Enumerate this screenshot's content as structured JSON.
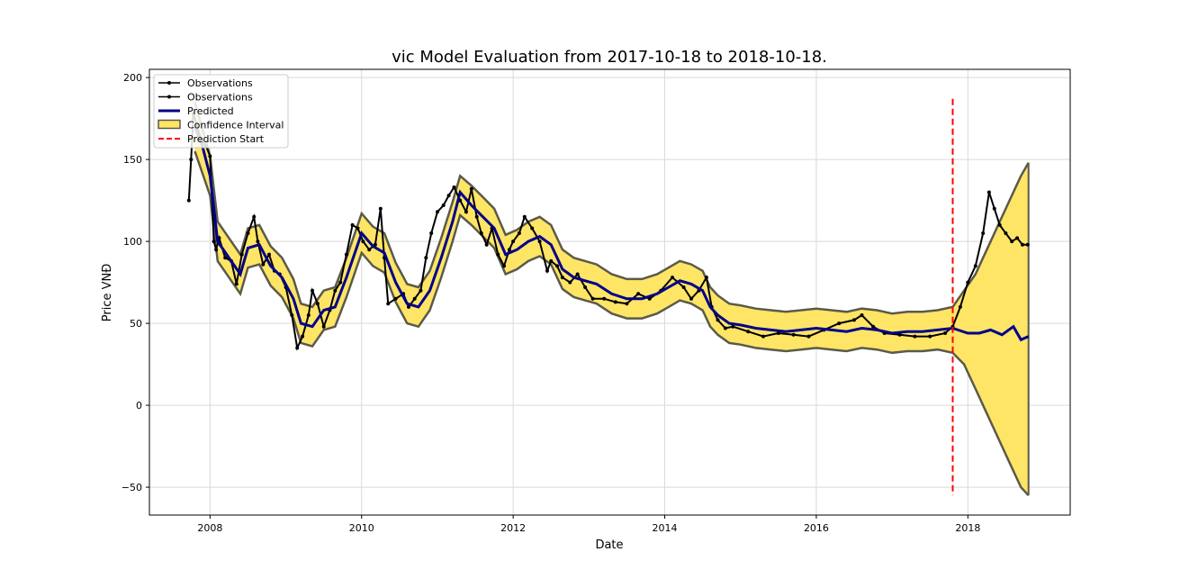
{
  "chart_data": {
    "type": "line",
    "title": "vic Model Evaluation from 2017-10-18 to 2018-10-18.",
    "xlabel": "Date",
    "ylabel": "Price VNĐ",
    "xlim": [
      2007.2,
      2019.35
    ],
    "ylim": [
      -67,
      205
    ],
    "x_ticks": [
      2008,
      2010,
      2012,
      2014,
      2016,
      2018
    ],
    "x_tick_labels": [
      "2008",
      "2010",
      "2012",
      "2014",
      "2016",
      "2018"
    ],
    "y_ticks": [
      -50,
      0,
      50,
      100,
      150,
      200
    ],
    "y_tick_labels": [
      "−50",
      "0",
      "50",
      "100",
      "150",
      "200"
    ],
    "grid": true,
    "legend_position": "top-left",
    "legend": [
      {
        "label": "Observations",
        "style": "obs"
      },
      {
        "label": "Observations",
        "style": "obs"
      },
      {
        "label": "Predicted",
        "style": "pred"
      },
      {
        "label": "Confidence Interval",
        "style": "ci"
      },
      {
        "label": "Prediction Start",
        "style": "start"
      }
    ],
    "prediction_start": {
      "x": 2017.8,
      "y_range": [
        -55,
        187
      ]
    },
    "colors": {
      "observations": "#000000",
      "predicted": "#00008b",
      "ci_fill": "#ffe566",
      "ci_edge": "#5a5a4a",
      "prediction_start": "#ff0000",
      "grid": "#d9d9d9"
    },
    "observed": {
      "x": [
        2007.72,
        2007.75,
        2007.78,
        2007.82,
        2007.88,
        2007.95,
        2008.0,
        2008.05,
        2008.08,
        2008.12,
        2008.2,
        2008.28,
        2008.35,
        2008.42,
        2008.5,
        2008.58,
        2008.63,
        2008.7,
        2008.78,
        2008.85,
        2008.92,
        2009.0,
        2009.08,
        2009.15,
        2009.22,
        2009.3,
        2009.35,
        2009.42,
        2009.5,
        2009.58,
        2009.65,
        2009.72,
        2009.8,
        2009.88,
        2009.95,
        2010.02,
        2010.1,
        2010.18,
        2010.25,
        2010.3,
        2010.35,
        2010.45,
        2010.55,
        2010.62,
        2010.7,
        2010.78,
        2010.85,
        2010.92,
        2011.0,
        2011.08,
        2011.15,
        2011.22,
        2011.3,
        2011.38,
        2011.45,
        2011.52,
        2011.58,
        2011.65,
        2011.72,
        2011.8,
        2011.88,
        2011.95,
        2012.0,
        2012.08,
        2012.15,
        2012.25,
        2012.35,
        2012.45,
        2012.5,
        2012.58,
        2012.65,
        2012.75,
        2012.85,
        2012.95,
        2013.05,
        2013.2,
        2013.35,
        2013.5,
        2013.65,
        2013.8,
        2013.95,
        2014.1,
        2014.25,
        2014.35,
        2014.45,
        2014.55,
        2014.62,
        2014.7,
        2014.8,
        2014.9,
        2015.1,
        2015.3,
        2015.5,
        2015.7,
        2015.9,
        2016.1,
        2016.3,
        2016.5,
        2016.6,
        2016.75,
        2016.9,
        2017.1,
        2017.3,
        2017.5,
        2017.7,
        2017.8,
        2017.9,
        2018.0,
        2018.1,
        2018.2,
        2018.28,
        2018.35,
        2018.42,
        2018.5,
        2018.58,
        2018.65,
        2018.72,
        2018.79
      ],
      "y": [
        125,
        150,
        178,
        172,
        162,
        158,
        152,
        100,
        95,
        102,
        90,
        88,
        74,
        92,
        105,
        115,
        100,
        86,
        92,
        82,
        80,
        72,
        55,
        35,
        42,
        55,
        70,
        62,
        48,
        58,
        70,
        75,
        92,
        110,
        108,
        100,
        95,
        98,
        120,
        90,
        62,
        65,
        68,
        60,
        65,
        70,
        90,
        105,
        118,
        122,
        128,
        133,
        125,
        118,
        132,
        115,
        105,
        98,
        108,
        92,
        85,
        95,
        100,
        105,
        115,
        108,
        100,
        82,
        88,
        85,
        78,
        75,
        80,
        72,
        65,
        65,
        63,
        62,
        68,
        65,
        70,
        78,
        72,
        65,
        70,
        78,
        60,
        52,
        47,
        48,
        45,
        42,
        44,
        43,
        42,
        46,
        50,
        52,
        55,
        48,
        44,
        43,
        42,
        42,
        44,
        48,
        60,
        75,
        85,
        105,
        130,
        120,
        110,
        105,
        100,
        102,
        98,
        98
      ]
    },
    "predicted": {
      "x": [
        2007.8,
        2007.9,
        2008.0,
        2008.1,
        2008.25,
        2008.4,
        2008.5,
        2008.65,
        2008.8,
        2008.95,
        2009.1,
        2009.2,
        2009.35,
        2009.5,
        2009.65,
        2009.8,
        2010.0,
        2010.15,
        2010.3,
        2010.45,
        2010.6,
        2010.75,
        2010.9,
        2011.05,
        2011.2,
        2011.3,
        2011.45,
        2011.6,
        2011.75,
        2011.9,
        2012.05,
        2012.2,
        2012.35,
        2012.5,
        2012.65,
        2012.8,
        2012.95,
        2013.1,
        2013.3,
        2013.5,
        2013.7,
        2013.9,
        2014.05,
        2014.2,
        2014.35,
        2014.5,
        2014.6,
        2014.7,
        2014.85,
        2015.0,
        2015.2,
        2015.4,
        2015.6,
        2015.8,
        2016.0,
        2016.2,
        2016.4,
        2016.6,
        2016.8,
        2017.0,
        2017.2,
        2017.4,
        2017.6,
        2017.8,
        2018.0,
        2018.15,
        2018.3,
        2018.45,
        2018.6,
        2018.7,
        2018.8
      ],
      "y": [
        170,
        158,
        140,
        100,
        90,
        80,
        96,
        98,
        85,
        78,
        65,
        50,
        48,
        58,
        60,
        78,
        105,
        97,
        93,
        75,
        62,
        60,
        70,
        90,
        112,
        130,
        122,
        115,
        108,
        92,
        95,
        100,
        103,
        98,
        83,
        78,
        76,
        74,
        68,
        65,
        65,
        68,
        72,
        76,
        74,
        70,
        60,
        55,
        50,
        49,
        47,
        46,
        45,
        46,
        47,
        46,
        45,
        47,
        46,
        44,
        45,
        45,
        46,
        47,
        44,
        44,
        46,
        43,
        48,
        40,
        42
      ]
    },
    "ci_upper": {
      "x": [
        2007.8,
        2008.0,
        2008.1,
        2008.25,
        2008.4,
        2008.5,
        2008.65,
        2008.8,
        2008.95,
        2009.1,
        2009.2,
        2009.35,
        2009.5,
        2009.65,
        2009.8,
        2010.0,
        2010.15,
        2010.3,
        2010.45,
        2010.6,
        2010.75,
        2010.9,
        2011.05,
        2011.2,
        2011.3,
        2011.45,
        2011.6,
        2011.75,
        2011.9,
        2012.05,
        2012.2,
        2012.35,
        2012.5,
        2012.65,
        2012.8,
        2012.95,
        2013.1,
        2013.3,
        2013.5,
        2013.7,
        2013.9,
        2014.05,
        2014.2,
        2014.35,
        2014.5,
        2014.6,
        2014.7,
        2014.85,
        2015.0,
        2015.2,
        2015.4,
        2015.6,
        2015.8,
        2016.0,
        2016.2,
        2016.4,
        2016.6,
        2016.8,
        2017.0,
        2017.2,
        2017.4,
        2017.6,
        2017.8,
        2017.95,
        2018.1,
        2018.25,
        2018.4,
        2018.55,
        2018.7,
        2018.8
      ],
      "y": [
        185,
        152,
        112,
        102,
        92,
        108,
        110,
        97,
        90,
        77,
        62,
        60,
        70,
        72,
        90,
        117,
        109,
        105,
        87,
        74,
        72,
        82,
        102,
        124,
        140,
        134,
        127,
        120,
        104,
        107,
        112,
        115,
        110,
        95,
        90,
        88,
        86,
        80,
        77,
        77,
        80,
        84,
        88,
        86,
        82,
        72,
        67,
        62,
        61,
        59,
        58,
        57,
        58,
        59,
        58,
        57,
        59,
        58,
        56,
        57,
        57,
        58,
        60,
        70,
        80,
        95,
        110,
        125,
        140,
        148
      ]
    },
    "ci_lower": {
      "x": [
        2007.8,
        2008.0,
        2008.1,
        2008.25,
        2008.4,
        2008.5,
        2008.65,
        2008.8,
        2008.95,
        2009.1,
        2009.2,
        2009.35,
        2009.5,
        2009.65,
        2009.8,
        2010.0,
        2010.15,
        2010.3,
        2010.45,
        2010.6,
        2010.75,
        2010.9,
        2011.05,
        2011.2,
        2011.3,
        2011.45,
        2011.6,
        2011.75,
        2011.9,
        2012.05,
        2012.2,
        2012.35,
        2012.5,
        2012.65,
        2012.8,
        2012.95,
        2013.1,
        2013.3,
        2013.5,
        2013.7,
        2013.9,
        2014.05,
        2014.2,
        2014.35,
        2014.5,
        2014.6,
        2014.7,
        2014.85,
        2015.0,
        2015.2,
        2015.4,
        2015.6,
        2015.8,
        2016.0,
        2016.2,
        2016.4,
        2016.6,
        2016.8,
        2017.0,
        2017.2,
        2017.4,
        2017.6,
        2017.8,
        2017.95,
        2018.1,
        2018.25,
        2018.4,
        2018.55,
        2018.7,
        2018.8
      ],
      "y": [
        155,
        128,
        88,
        78,
        68,
        84,
        86,
        73,
        66,
        53,
        38,
        36,
        46,
        48,
        66,
        93,
        85,
        81,
        63,
        50,
        48,
        58,
        78,
        100,
        116,
        110,
        103,
        96,
        80,
        83,
        88,
        91,
        86,
        71,
        66,
        64,
        62,
        56,
        53,
        53,
        56,
        60,
        64,
        62,
        58,
        48,
        43,
        38,
        37,
        35,
        34,
        33,
        34,
        35,
        34,
        33,
        35,
        34,
        32,
        33,
        33,
        34,
        32,
        25,
        10,
        -5,
        -20,
        -35,
        -50,
        -55
      ]
    }
  }
}
